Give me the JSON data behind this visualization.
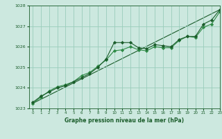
{
  "background_color": "#cce8df",
  "grid_color": "#99ccbb",
  "line_color_dark": "#1a5c2a",
  "line_color_mid": "#2d8a45",
  "xlabel": "Graphe pression niveau de la mer (hPa)",
  "xlim": [
    -0.5,
    23
  ],
  "ylim": [
    1023,
    1028
  ],
  "yticks": [
    1023,
    1024,
    1025,
    1026,
    1027,
    1028
  ],
  "xticks": [
    0,
    1,
    2,
    3,
    4,
    5,
    6,
    7,
    8,
    9,
    10,
    11,
    12,
    13,
    14,
    15,
    16,
    17,
    18,
    19,
    20,
    21,
    22,
    23
  ],
  "series1_x": [
    0,
    1,
    2,
    3,
    4,
    5,
    6,
    7,
    8,
    9,
    10,
    11,
    12,
    13,
    14,
    15,
    16,
    17,
    18,
    19,
    20,
    21,
    22,
    23
  ],
  "series1_y": [
    1023.3,
    1023.6,
    1023.8,
    1024.0,
    1024.1,
    1024.3,
    1024.5,
    1024.7,
    1025.0,
    1025.4,
    1026.2,
    1026.2,
    1026.2,
    1025.95,
    1025.9,
    1026.1,
    1026.05,
    1026.0,
    1026.35,
    1026.5,
    1026.5,
    1027.1,
    1027.3,
    1027.8
  ],
  "series2_x": [
    0,
    1,
    2,
    3,
    4,
    5,
    6,
    7,
    8,
    9,
    10,
    11,
    12,
    13,
    14,
    15,
    16,
    17,
    18,
    19,
    20,
    21,
    22,
    23
  ],
  "series2_y": [
    1023.25,
    1023.55,
    1023.85,
    1024.05,
    1024.15,
    1024.3,
    1024.6,
    1024.75,
    1025.05,
    1025.35,
    1025.8,
    1025.85,
    1026.0,
    1025.85,
    1025.8,
    1026.0,
    1025.95,
    1025.95,
    1026.3,
    1026.5,
    1026.45,
    1026.95,
    1027.1,
    1027.7
  ],
  "series3_x": [
    0,
    23
  ],
  "series3_y": [
    1023.25,
    1027.8
  ],
  "marker": "D",
  "markersize": 2.2,
  "linewidth": 0.8
}
